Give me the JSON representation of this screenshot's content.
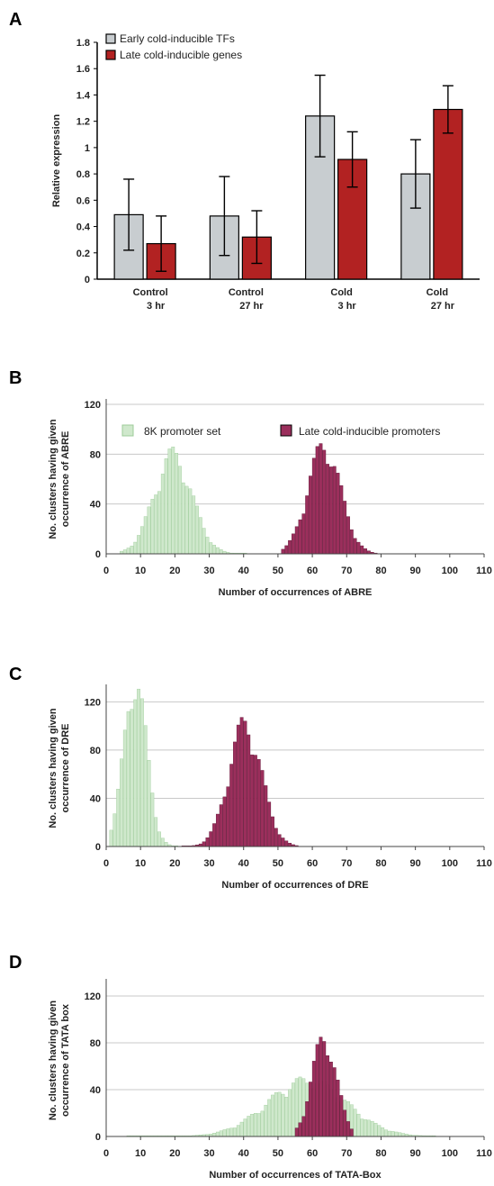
{
  "chart_data": [
    {
      "panel": "A",
      "type": "bar",
      "ylabel": "Relative expression",
      "ylim": [
        0,
        1.8
      ],
      "yticks": [
        "0",
        "0.2",
        "0.4",
        "0.6",
        "0.8",
        "1",
        "1.2",
        "1.4",
        "1.6",
        "1.8"
      ],
      "categories": [
        {
          "line1": "Control",
          "line2": "3 hr"
        },
        {
          "line1": "Control",
          "line2": "27 hr"
        },
        {
          "line1": "Cold",
          "line2": "3 hr"
        },
        {
          "line1": "Cold",
          "line2": "27 hr"
        }
      ],
      "series": [
        {
          "name": "Early  cold-inducible TFs",
          "color": "#c8cdd0",
          "values": [
            0.49,
            0.48,
            1.24,
            0.8
          ],
          "errors": [
            0.27,
            0.3,
            0.31,
            0.26
          ]
        },
        {
          "name": "Late cold-inducible genes",
          "color": "#b22222",
          "values": [
            0.27,
            0.32,
            0.91,
            1.29
          ],
          "errors": [
            0.21,
            0.2,
            0.21,
            0.18
          ]
        }
      ]
    },
    {
      "panel": "B",
      "type": "bar",
      "subtype": "histogram",
      "xlabel": "Number of occurrences of ABRE",
      "ylabel_line1": "No. clusters having given",
      "ylabel_line2": "occurrence of ABRE",
      "xlim": [
        0,
        110
      ],
      "ylim": [
        0,
        120
      ],
      "xticks": [
        "0",
        "10",
        "20",
        "30",
        "40",
        "50",
        "60",
        "70",
        "80",
        "90",
        "100",
        "110"
      ],
      "yticks": [
        "0",
        "40",
        "80",
        "120"
      ],
      "series": [
        {
          "name": "8K promoter set",
          "color": "#cfe8cc",
          "stroke": "#9ccb98",
          "mean": 19,
          "sd": 5.5,
          "peak": 75,
          "range": [
            4,
            40
          ]
        },
        {
          "name": "Late cold-inducible promoters",
          "color": "#9b2f5c",
          "stroke": "#5e1233",
          "mean": 63,
          "sd": 4.8,
          "peak": 82,
          "range": [
            51,
            78
          ]
        }
      ]
    },
    {
      "panel": "C",
      "type": "bar",
      "subtype": "histogram",
      "xlabel": "Number of occurrences of DRE",
      "ylabel_line1": "No. clusters having given",
      "ylabel_line2": "occurrence of DRE",
      "xlim": [
        0,
        110
      ],
      "ylim": [
        0,
        130
      ],
      "xticks": [
        "0",
        "10",
        "20",
        "30",
        "40",
        "50",
        "60",
        "70",
        "80",
        "90",
        "100",
        "110"
      ],
      "yticks": [
        "0",
        "40",
        "80",
        "120"
      ],
      "series": [
        {
          "name": "8K promoter set",
          "color": "#cfe8cc",
          "stroke": "#9ccb98",
          "mean": 8,
          "sd": 3.3,
          "peak": 132,
          "range": [
            1,
            20
          ]
        },
        {
          "name": "Late cold-inducible promoters",
          "color": "#9b2f5c",
          "stroke": "#5e1233",
          "mean": 40,
          "sd": 4.8,
          "peak": 96,
          "range": [
            22,
            55
          ]
        }
      ]
    },
    {
      "panel": "D",
      "type": "bar",
      "subtype": "histogram",
      "xlabel": "Number of occurrences of TATA-Box",
      "ylabel_line1": "No. clusters having given",
      "ylabel_line2": "occurrence of TATA box",
      "xlim": [
        0,
        110
      ],
      "ylim": [
        0,
        130
      ],
      "xticks": [
        "0",
        "10",
        "20",
        "30",
        "40",
        "50",
        "60",
        "70",
        "80",
        "90",
        "100",
        "110"
      ],
      "yticks": [
        "0",
        "40",
        "80",
        "120"
      ],
      "series": [
        {
          "name": "8K promoter set",
          "color": "#cfe8cc",
          "stroke": "#9ccb98",
          "mean": 58,
          "sd": 11.5,
          "peak": 45,
          "range": [
            6,
            95
          ]
        },
        {
          "name": "Late cold-inducible promoters",
          "color": "#9b2f5c",
          "stroke": "#5e1233",
          "mean": 63,
          "sd": 3.6,
          "peak": 80,
          "range": [
            55,
            71
          ]
        }
      ]
    }
  ]
}
